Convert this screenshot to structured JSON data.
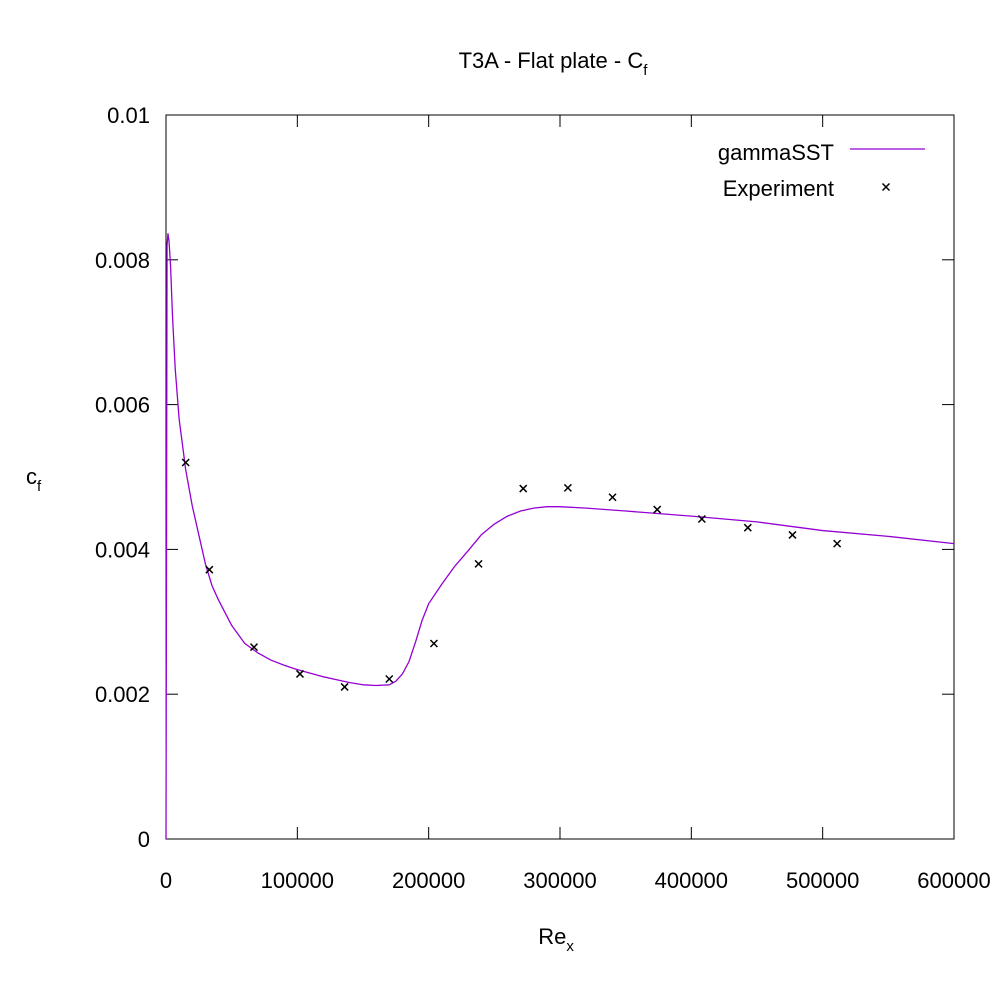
{
  "chart_data": {
    "type": "line",
    "title": "T3A - Flat plate - C",
    "title_sub": "f",
    "xlabel": "Re",
    "xlabel_sub": "x",
    "ylabel": "c",
    "ylabel_sub": "f",
    "xlim": [
      0,
      600000
    ],
    "ylim": [
      0,
      0.01
    ],
    "xticks": [
      0,
      100000,
      200000,
      300000,
      400000,
      500000,
      600000
    ],
    "xtick_labels": [
      "0",
      "100000",
      "200000",
      "300000",
      "400000",
      "500000",
      "600000"
    ],
    "yticks": [
      0,
      0.002,
      0.004,
      0.006,
      0.008,
      0.01
    ],
    "ytick_labels": [
      "0",
      "0.002",
      "0.004",
      "0.006",
      "0.008",
      "0.01"
    ],
    "grid": false,
    "legend_position": "top-right",
    "series": [
      {
        "name": "gammaSST",
        "kind": "line",
        "color": "#9400d3",
        "x": [
          0,
          800,
          1500,
          2300,
          3500,
          5000,
          7000,
          10000,
          15000,
          20000,
          25000,
          30000,
          35000,
          40000,
          50000,
          60000,
          70000,
          80000,
          90000,
          100000,
          110000,
          120000,
          130000,
          140000,
          150000,
          160000,
          170000,
          175000,
          180000,
          185000,
          190000,
          195000,
          200000,
          210000,
          220000,
          230000,
          240000,
          250000,
          260000,
          270000,
          280000,
          290000,
          300000,
          320000,
          350000,
          400000,
          450000,
          500000,
          550000,
          600000
        ],
        "y": [
          0.0,
          0.0082,
          0.00836,
          0.00826,
          0.0079,
          0.0072,
          0.0065,
          0.0058,
          0.0051,
          0.0046,
          0.0042,
          0.0038,
          0.0035,
          0.0033,
          0.00295,
          0.0027,
          0.00257,
          0.00247,
          0.0024,
          0.00234,
          0.00229,
          0.00224,
          0.0022,
          0.00216,
          0.00213,
          0.00212,
          0.00213,
          0.00218,
          0.00228,
          0.00245,
          0.00272,
          0.00302,
          0.00325,
          0.00352,
          0.00377,
          0.00398,
          0.0042,
          0.00435,
          0.00446,
          0.00453,
          0.00457,
          0.00459,
          0.00459,
          0.00457,
          0.00453,
          0.00446,
          0.00438,
          0.00426,
          0.00418,
          0.00408
        ]
      },
      {
        "name": "Experiment",
        "kind": "points",
        "color": "#000000",
        "x": [
          15000,
          33000,
          67000,
          102000,
          136000,
          170000,
          204000,
          238000,
          272000,
          306000,
          340000,
          374000,
          408000,
          443000,
          477000,
          511000
        ],
        "y": [
          0.0052,
          0.00372,
          0.00265,
          0.00228,
          0.0021,
          0.00221,
          0.0027,
          0.0038,
          0.00484,
          0.00485,
          0.00472,
          0.00455,
          0.00442,
          0.0043,
          0.0042,
          0.00408
        ]
      }
    ]
  }
}
